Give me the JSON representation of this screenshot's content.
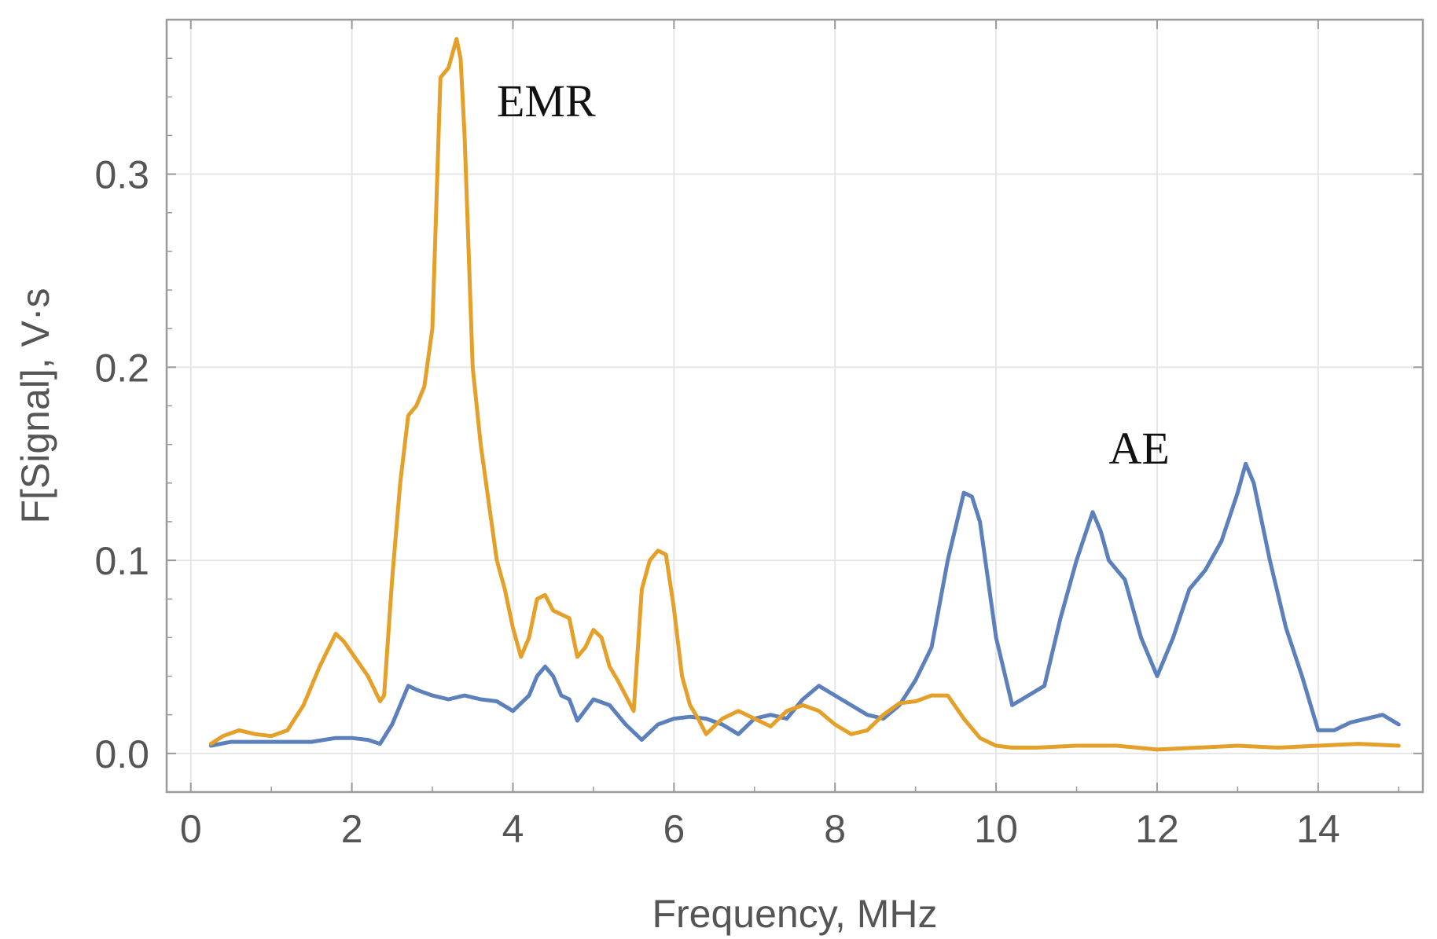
{
  "chart_data": {
    "type": "line",
    "title": "",
    "xlabel": "Frequency, MHz",
    "ylabel": "F[Signal], V·s",
    "xlim": [
      -0.3,
      15.3
    ],
    "ylim": [
      -0.02,
      0.38
    ],
    "xticks": [
      0,
      2,
      4,
      6,
      8,
      10,
      12,
      14
    ],
    "yticks": [
      0.0,
      0.1,
      0.2,
      0.3
    ],
    "xtick_labels": [
      "0",
      "2",
      "4",
      "6",
      "8",
      "10",
      "12",
      "14"
    ],
    "ytick_labels": [
      "0.0",
      "0.1",
      "0.2",
      "0.3"
    ],
    "grid": true,
    "legend": "none",
    "annotations": [
      {
        "text": "EMR",
        "x": 3.8,
        "y": 0.33
      },
      {
        "text": "AE",
        "x": 11.4,
        "y": 0.15
      }
    ],
    "series": [
      {
        "color": "#e5a02a",
        "x": [
          0.25,
          0.4,
          0.6,
          0.8,
          1.0,
          1.2,
          1.4,
          1.6,
          1.8,
          1.9,
          2.0,
          2.2,
          2.35,
          2.4,
          2.5,
          2.6,
          2.7,
          2.8,
          2.9,
          3.0,
          3.1,
          3.2,
          3.3,
          3.35,
          3.4,
          3.5,
          3.6,
          3.7,
          3.8,
          3.9,
          4.0,
          4.1,
          4.2,
          4.3,
          4.4,
          4.5,
          4.6,
          4.7,
          4.8,
          4.9,
          5.0,
          5.1,
          5.2,
          5.3,
          5.4,
          5.5,
          5.6,
          5.7,
          5.8,
          5.9,
          6.0,
          6.1,
          6.2,
          6.3,
          6.4,
          6.6,
          6.8,
          7.0,
          7.2,
          7.4,
          7.6,
          7.8,
          8.0,
          8.2,
          8.4,
          8.6,
          8.8,
          9.0,
          9.2,
          9.4,
          9.6,
          9.8,
          10.0,
          10.2,
          10.5,
          11.0,
          11.5,
          12.0,
          12.5,
          13.0,
          13.5,
          14.0,
          14.5,
          15.0
        ],
        "values": [
          0.005,
          0.009,
          0.012,
          0.01,
          0.009,
          0.012,
          0.025,
          0.045,
          0.062,
          0.058,
          0.052,
          0.04,
          0.027,
          0.03,
          0.09,
          0.14,
          0.175,
          0.18,
          0.19,
          0.22,
          0.35,
          0.355,
          0.37,
          0.36,
          0.32,
          0.2,
          0.16,
          0.13,
          0.1,
          0.085,
          0.065,
          0.05,
          0.06,
          0.08,
          0.082,
          0.074,
          0.072,
          0.07,
          0.05,
          0.055,
          0.064,
          0.06,
          0.045,
          0.038,
          0.03,
          0.022,
          0.085,
          0.1,
          0.105,
          0.103,
          0.075,
          0.04,
          0.025,
          0.018,
          0.01,
          0.018,
          0.022,
          0.018,
          0.014,
          0.022,
          0.025,
          0.022,
          0.015,
          0.01,
          0.012,
          0.02,
          0.026,
          0.027,
          0.03,
          0.03,
          0.018,
          0.008,
          0.004,
          0.003,
          0.003,
          0.004,
          0.004,
          0.002,
          0.003,
          0.004,
          0.003,
          0.004,
          0.005,
          0.004
        ]
      },
      {
        "color": "#5b80bb",
        "x": [
          0.25,
          0.5,
          1.0,
          1.5,
          1.8,
          2.0,
          2.2,
          2.35,
          2.5,
          2.6,
          2.7,
          2.8,
          3.0,
          3.2,
          3.4,
          3.6,
          3.8,
          4.0,
          4.2,
          4.3,
          4.4,
          4.5,
          4.6,
          4.7,
          4.8,
          5.0,
          5.2,
          5.4,
          5.6,
          5.8,
          6.0,
          6.2,
          6.4,
          6.6,
          6.8,
          7.0,
          7.2,
          7.4,
          7.6,
          7.8,
          8.0,
          8.2,
          8.4,
          8.6,
          8.8,
          9.0,
          9.2,
          9.4,
          9.6,
          9.7,
          9.8,
          10.0,
          10.2,
          10.4,
          10.6,
          10.8,
          11.0,
          11.2,
          11.3,
          11.4,
          11.6,
          11.8,
          12.0,
          12.2,
          12.4,
          12.6,
          12.8,
          13.0,
          13.1,
          13.2,
          13.4,
          13.6,
          13.8,
          14.0,
          14.2,
          14.4,
          14.6,
          14.8,
          15.0
        ],
        "values": [
          0.004,
          0.006,
          0.006,
          0.006,
          0.008,
          0.008,
          0.007,
          0.005,
          0.015,
          0.025,
          0.035,
          0.033,
          0.03,
          0.028,
          0.03,
          0.028,
          0.027,
          0.022,
          0.03,
          0.04,
          0.045,
          0.04,
          0.03,
          0.028,
          0.017,
          0.028,
          0.025,
          0.015,
          0.007,
          0.015,
          0.018,
          0.019,
          0.018,
          0.015,
          0.01,
          0.018,
          0.02,
          0.018,
          0.028,
          0.035,
          0.03,
          0.025,
          0.02,
          0.018,
          0.025,
          0.038,
          0.055,
          0.1,
          0.135,
          0.133,
          0.12,
          0.06,
          0.025,
          0.03,
          0.035,
          0.07,
          0.1,
          0.125,
          0.115,
          0.1,
          0.09,
          0.06,
          0.04,
          0.06,
          0.085,
          0.095,
          0.11,
          0.135,
          0.15,
          0.14,
          0.1,
          0.065,
          0.04,
          0.012,
          0.012,
          0.016,
          0.018,
          0.02,
          0.015
        ]
      }
    ]
  }
}
